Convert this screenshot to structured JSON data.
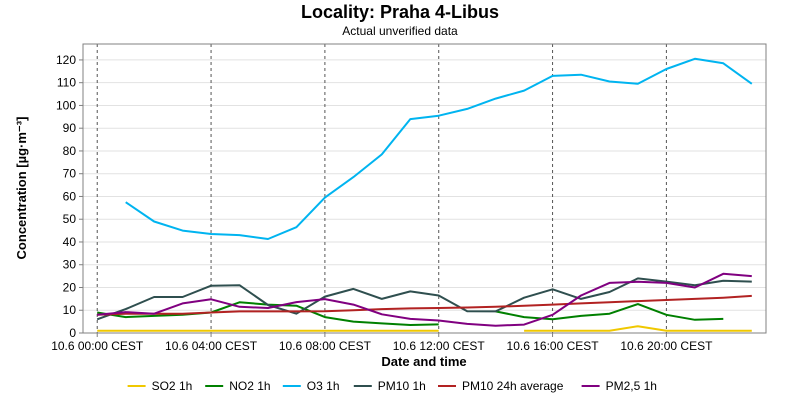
{
  "chart_data": {
    "type": "line",
    "title": "Locality: Praha 4-Libus",
    "subtitle": "Actual unverified data",
    "xlabel": "Date and time",
    "ylabel": "Concentration [µg·m⁻³]",
    "ylim": [
      0,
      127
    ],
    "xlim": [
      -0.5,
      23.5
    ],
    "yticks": [
      0,
      10,
      20,
      30,
      40,
      50,
      60,
      70,
      80,
      90,
      100,
      110,
      120
    ],
    "xticks": [
      {
        "x": 0,
        "label": "10.6 00:00 CEST"
      },
      {
        "x": 4,
        "label": "10.6 04:00 CEST"
      },
      {
        "x": 8,
        "label": "10.6 08:00 CEST"
      },
      {
        "x": 12,
        "label": "10.6 12:00 CEST"
      },
      {
        "x": 16,
        "label": "10.6 16:00 CEST"
      },
      {
        "x": 20,
        "label": "10.6 20:00 CEST"
      }
    ],
    "x_unit": "hours since 10.6 00:00 CEST",
    "grid": true,
    "legend_position": "bottom",
    "series": [
      {
        "name": "SO2 1h",
        "color": "#f0c800",
        "x": [
          0,
          1,
          2,
          3,
          4,
          5,
          6,
          7,
          8,
          9,
          10,
          11,
          12,
          13,
          14,
          15,
          16,
          17,
          18,
          19,
          20,
          21,
          22,
          23
        ],
        "values": [
          1,
          1,
          1,
          1,
          1,
          1,
          1,
          1,
          1,
          1,
          1,
          1,
          1,
          null,
          null,
          1,
          1,
          1,
          1,
          3,
          1,
          1,
          1,
          1
        ]
      },
      {
        "name": "NO2 1h",
        "color": "#008000",
        "x": [
          0,
          1,
          2,
          3,
          4,
          5,
          6,
          7,
          8,
          9,
          10,
          11,
          12,
          13,
          14,
          15,
          16,
          17,
          18,
          19,
          20,
          21,
          22,
          23
        ],
        "values": [
          9,
          7,
          7.5,
          8,
          9,
          13.5,
          12.5,
          12,
          7,
          5,
          4.2,
          3.5,
          3.8,
          null,
          9.5,
          7,
          6,
          7.5,
          8.5,
          12.7,
          8,
          5.8,
          6.2,
          null
        ]
      },
      {
        "name": "O3 1h",
        "color": "#00b4f0",
        "x": [
          0,
          1,
          2,
          3,
          4,
          5,
          6,
          7,
          8,
          9,
          10,
          11,
          12,
          13,
          14,
          15,
          16,
          17,
          18,
          19,
          20,
          21,
          22,
          23
        ],
        "values": [
          null,
          57.5,
          49,
          45,
          43.5,
          43,
          41.3,
          46.5,
          59.5,
          68.5,
          78.5,
          94,
          95.5,
          98.5,
          103,
          106.5,
          113,
          113.5,
          110.5,
          109.5,
          116,
          120.5,
          118.5,
          109.5
        ]
      },
      {
        "name": "PM10 1h",
        "color": "#2f4f4f",
        "x": [
          0,
          1,
          2,
          3,
          4,
          5,
          6,
          7,
          8,
          9,
          10,
          11,
          12,
          13,
          14,
          15,
          16,
          17,
          18,
          19,
          20,
          21,
          22,
          23
        ],
        "values": [
          6,
          10.5,
          15.8,
          15.8,
          20.8,
          21,
          12.3,
          8.5,
          16,
          19.4,
          15,
          18.3,
          16.5,
          9.6,
          9.5,
          15.5,
          19.2,
          15,
          18,
          24,
          22.6,
          21,
          23,
          22.6
        ]
      },
      {
        "name": "PM10 24h average",
        "color": "#b22222",
        "x": [
          0,
          1,
          2,
          3,
          4,
          5,
          6,
          7,
          8,
          9,
          10,
          11,
          12,
          13,
          14,
          15,
          16,
          17,
          18,
          19,
          20,
          21,
          22,
          23
        ],
        "values": [
          8,
          8.5,
          8.5,
          8.5,
          9,
          9.5,
          9.5,
          9.5,
          9.6,
          10,
          10.5,
          10.8,
          11,
          11.2,
          11.5,
          12,
          12.5,
          13,
          13.5,
          14,
          14.5,
          15,
          15.5,
          16.3
        ]
      },
      {
        "name": "PM2,5 1h",
        "color": "#800080",
        "x": [
          0,
          1,
          2,
          3,
          4,
          5,
          6,
          7,
          8,
          9,
          10,
          11,
          12,
          13,
          14,
          15,
          16,
          17,
          18,
          19,
          20,
          21,
          22,
          23
        ],
        "values": [
          8,
          9.2,
          8.5,
          13,
          14.8,
          11.5,
          11,
          13.6,
          14.9,
          12.5,
          8.2,
          6.2,
          5.5,
          4,
          3.2,
          3.7,
          8,
          16.5,
          22,
          22.5,
          22,
          20,
          26,
          25
        ]
      }
    ]
  }
}
